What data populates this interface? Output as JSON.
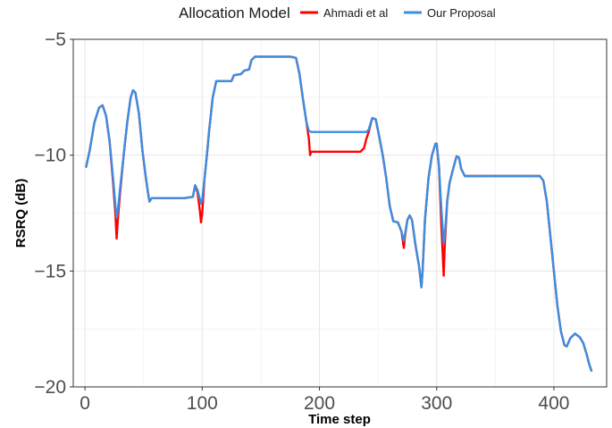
{
  "chart_data": {
    "type": "line",
    "legend": {
      "title": "Allocation Model",
      "position": "top"
    },
    "xlabel": "Time step",
    "ylabel": "RSRQ (dB)",
    "xlim": [
      -10,
      445
    ],
    "ylim": [
      -20,
      -5
    ],
    "xticks": [
      0,
      100,
      200,
      300,
      400
    ],
    "yticks": [
      -20,
      -15,
      -10,
      -5
    ],
    "xtick_labels": [
      "0",
      "100",
      "200",
      "300",
      "400"
    ],
    "ytick_labels": [
      "−20",
      "−15",
      "−10",
      "−5"
    ],
    "grid": true,
    "series": [
      {
        "name": "Ahmadi et al",
        "color": "#ff0000",
        "points": [
          [
            1,
            -10.5
          ],
          [
            4,
            -9.8
          ],
          [
            8,
            -8.6
          ],
          [
            12,
            -7.95
          ],
          [
            15,
            -7.85
          ],
          [
            18,
            -8.3
          ],
          [
            21,
            -9.4
          ],
          [
            24,
            -11.2
          ],
          [
            26,
            -12.6
          ],
          [
            27,
            -13.6
          ],
          [
            28,
            -12.8
          ],
          [
            30,
            -11.6
          ],
          [
            33,
            -10.0
          ],
          [
            36,
            -8.6
          ],
          [
            39,
            -7.5
          ],
          [
            41,
            -7.2
          ],
          [
            43,
            -7.3
          ],
          [
            46,
            -8.2
          ],
          [
            49,
            -9.8
          ],
          [
            52,
            -11.0
          ],
          [
            54,
            -11.7
          ],
          [
            55,
            -12.0
          ],
          [
            57,
            -11.85
          ],
          [
            70,
            -11.85
          ],
          [
            85,
            -11.85
          ],
          [
            92,
            -11.8
          ],
          [
            94,
            -11.3
          ],
          [
            96,
            -11.6
          ],
          [
            98,
            -12.4
          ],
          [
            99,
            -12.9
          ],
          [
            100,
            -12.5
          ],
          [
            102,
            -11.0
          ],
          [
            104,
            -10.0
          ],
          [
            106,
            -8.9
          ],
          [
            109,
            -7.5
          ],
          [
            112,
            -6.8
          ],
          [
            118,
            -6.8
          ],
          [
            125,
            -6.8
          ],
          [
            127,
            -6.55
          ],
          [
            133,
            -6.5
          ],
          [
            136,
            -6.35
          ],
          [
            140,
            -6.3
          ],
          [
            142,
            -5.9
          ],
          [
            145,
            -5.75
          ],
          [
            160,
            -5.75
          ],
          [
            175,
            -5.75
          ],
          [
            180,
            -5.8
          ],
          [
            183,
            -6.5
          ],
          [
            186,
            -7.6
          ],
          [
            189,
            -8.6
          ],
          [
            191,
            -9.3
          ],
          [
            192,
            -10.0
          ],
          [
            193,
            -9.85
          ],
          [
            205,
            -9.85
          ],
          [
            220,
            -9.85
          ],
          [
            235,
            -9.85
          ],
          [
            238,
            -9.7
          ],
          [
            240,
            -9.3
          ],
          [
            242,
            -9.0
          ],
          [
            245,
            -8.4
          ],
          [
            248,
            -8.45
          ],
          [
            251,
            -9.2
          ],
          [
            254,
            -10.0
          ],
          [
            257,
            -11.0
          ],
          [
            260,
            -12.2
          ],
          [
            263,
            -12.85
          ],
          [
            267,
            -12.9
          ],
          [
            270,
            -13.3
          ],
          [
            272,
            -14.0
          ],
          [
            273,
            -13.5
          ],
          [
            275,
            -12.8
          ],
          [
            277,
            -12.6
          ],
          [
            279,
            -12.8
          ],
          [
            282,
            -13.9
          ],
          [
            285,
            -14.8
          ],
          [
            287,
            -15.7
          ],
          [
            288,
            -15.0
          ],
          [
            290,
            -12.8
          ],
          [
            293,
            -11.0
          ],
          [
            296,
            -10.0
          ],
          [
            299,
            -9.5
          ],
          [
            300,
            -9.5
          ],
          [
            302,
            -10.5
          ],
          [
            304,
            -13.0
          ],
          [
            306,
            -15.2
          ],
          [
            307,
            -13.8
          ],
          [
            309,
            -12.0
          ],
          [
            311,
            -11.2
          ],
          [
            314,
            -10.6
          ],
          [
            317,
            -10.05
          ],
          [
            319,
            -10.1
          ],
          [
            321,
            -10.6
          ],
          [
            324,
            -10.9
          ],
          [
            350,
            -10.9
          ],
          [
            375,
            -10.9
          ],
          [
            388,
            -10.9
          ],
          [
            391,
            -11.1
          ],
          [
            394,
            -12.0
          ],
          [
            397,
            -13.5
          ],
          [
            400,
            -15.0
          ],
          [
            403,
            -16.5
          ],
          [
            406,
            -17.6
          ],
          [
            409,
            -18.2
          ],
          [
            411,
            -18.25
          ],
          [
            414,
            -17.9
          ],
          [
            418,
            -17.7
          ],
          [
            422,
            -17.85
          ],
          [
            425,
            -18.1
          ],
          [
            428,
            -18.6
          ],
          [
            430,
            -19.0
          ],
          [
            432,
            -19.3
          ]
        ]
      },
      {
        "name": "Our Proposal",
        "color": "#3b8ee2",
        "points": [
          [
            1,
            -10.5
          ],
          [
            4,
            -9.8
          ],
          [
            8,
            -8.6
          ],
          [
            12,
            -7.95
          ],
          [
            15,
            -7.85
          ],
          [
            18,
            -8.3
          ],
          [
            21,
            -9.4
          ],
          [
            24,
            -11.0
          ],
          [
            26,
            -12.2
          ],
          [
            27,
            -12.7
          ],
          [
            28,
            -12.4
          ],
          [
            30,
            -11.4
          ],
          [
            33,
            -10.0
          ],
          [
            36,
            -8.6
          ],
          [
            39,
            -7.5
          ],
          [
            41,
            -7.2
          ],
          [
            43,
            -7.3
          ],
          [
            46,
            -8.2
          ],
          [
            49,
            -9.8
          ],
          [
            52,
            -11.0
          ],
          [
            54,
            -11.7
          ],
          [
            55,
            -12.0
          ],
          [
            57,
            -11.85
          ],
          [
            70,
            -11.85
          ],
          [
            85,
            -11.85
          ],
          [
            92,
            -11.8
          ],
          [
            94,
            -11.3
          ],
          [
            96,
            -11.5
          ],
          [
            98,
            -11.9
          ],
          [
            99,
            -12.1
          ],
          [
            100,
            -11.9
          ],
          [
            102,
            -11.0
          ],
          [
            104,
            -10.0
          ],
          [
            106,
            -8.9
          ],
          [
            109,
            -7.5
          ],
          [
            112,
            -6.8
          ],
          [
            118,
            -6.8
          ],
          [
            125,
            -6.8
          ],
          [
            127,
            -6.55
          ],
          [
            133,
            -6.5
          ],
          [
            136,
            -6.35
          ],
          [
            140,
            -6.3
          ],
          [
            142,
            -5.9
          ],
          [
            145,
            -5.75
          ],
          [
            160,
            -5.75
          ],
          [
            175,
            -5.75
          ],
          [
            180,
            -5.8
          ],
          [
            183,
            -6.5
          ],
          [
            186,
            -7.6
          ],
          [
            189,
            -8.6
          ],
          [
            191,
            -8.95
          ],
          [
            193,
            -9.0
          ],
          [
            205,
            -9.0
          ],
          [
            220,
            -9.0
          ],
          [
            235,
            -9.0
          ],
          [
            238,
            -9.0
          ],
          [
            240,
            -9.0
          ],
          [
            242,
            -8.9
          ],
          [
            245,
            -8.4
          ],
          [
            248,
            -8.45
          ],
          [
            251,
            -9.2
          ],
          [
            254,
            -10.0
          ],
          [
            257,
            -11.0
          ],
          [
            260,
            -12.2
          ],
          [
            263,
            -12.85
          ],
          [
            267,
            -12.9
          ],
          [
            270,
            -13.3
          ],
          [
            272,
            -13.7
          ],
          [
            273,
            -13.4
          ],
          [
            275,
            -12.8
          ],
          [
            277,
            -12.6
          ],
          [
            279,
            -12.8
          ],
          [
            282,
            -13.9
          ],
          [
            285,
            -14.8
          ],
          [
            287,
            -15.7
          ],
          [
            288,
            -15.0
          ],
          [
            290,
            -12.8
          ],
          [
            293,
            -11.0
          ],
          [
            296,
            -10.0
          ],
          [
            299,
            -9.5
          ],
          [
            300,
            -9.5
          ],
          [
            302,
            -10.5
          ],
          [
            304,
            -12.3
          ],
          [
            306,
            -13.8
          ],
          [
            307,
            -13.4
          ],
          [
            309,
            -12.0
          ],
          [
            311,
            -11.2
          ],
          [
            314,
            -10.6
          ],
          [
            317,
            -10.05
          ],
          [
            319,
            -10.1
          ],
          [
            321,
            -10.6
          ],
          [
            324,
            -10.9
          ],
          [
            350,
            -10.9
          ],
          [
            375,
            -10.9
          ],
          [
            388,
            -10.9
          ],
          [
            391,
            -11.1
          ],
          [
            394,
            -12.0
          ],
          [
            397,
            -13.5
          ],
          [
            400,
            -15.0
          ],
          [
            403,
            -16.5
          ],
          [
            406,
            -17.6
          ],
          [
            409,
            -18.2
          ],
          [
            411,
            -18.25
          ],
          [
            414,
            -17.9
          ],
          [
            418,
            -17.7
          ],
          [
            422,
            -17.85
          ],
          [
            425,
            -18.1
          ],
          [
            428,
            -18.6
          ],
          [
            430,
            -19.0
          ],
          [
            432,
            -19.3
          ]
        ]
      }
    ]
  }
}
